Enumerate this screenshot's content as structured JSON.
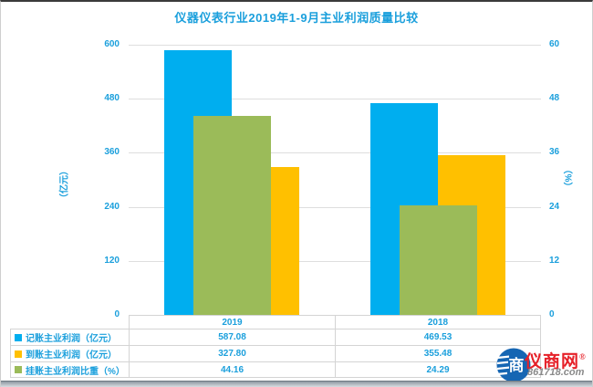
{
  "title": "仪器仪表行业2019年1-9月主业利润质量比较",
  "chart_data": {
    "type": "bar",
    "title": "仪器仪表行业2019年1-9月主业利润质量比较",
    "categories": [
      "2019",
      "2018"
    ],
    "series": [
      {
        "name": "记账主业利润（亿元）",
        "axis": "left",
        "color": "#00AEEF",
        "values": [
          587.08,
          469.53
        ]
      },
      {
        "name": "到账主业利润（亿元）",
        "axis": "left",
        "color": "#FFC000",
        "values": [
          327.8,
          355.48
        ]
      },
      {
        "name": "挂账主业利润比重（%）",
        "axis": "right",
        "color": "#9BBB59",
        "values": [
          44.16,
          24.29
        ]
      }
    ],
    "left_axis": {
      "label": "（亿元）",
      "max": 600,
      "ticks": [
        0,
        120,
        240,
        360,
        480,
        600
      ]
    },
    "right_axis": {
      "label": "（%）",
      "max": 60,
      "ticks": [
        0,
        12,
        24,
        36,
        48,
        60
      ]
    },
    "grid": true,
    "legend_position": "data-table-left"
  },
  "table": {
    "col_headers": [
      "2019",
      "2018"
    ],
    "rows": [
      {
        "label": "记账主业利润（亿元）",
        "values": [
          "587.08",
          "469.53"
        ]
      },
      {
        "label": "到账主业利润（亿元）",
        "values": [
          "327.80",
          "355.48"
        ]
      },
      {
        "label": "挂账主业利润比重（%）",
        "values": [
          "44.16",
          "24.29"
        ]
      }
    ]
  },
  "watermark": {
    "logo_glyph": "商",
    "site_name": "仪商网",
    "reg_mark": "®",
    "site_url": "861718.com"
  },
  "colors": {
    "accent_text": "#1A9FDC",
    "bar_blue": "#00AEEF",
    "bar_yellow": "#FFC000",
    "bar_green": "#9BBB59",
    "watermark_red": "#E62129",
    "logo_blue": "#1666B3"
  }
}
